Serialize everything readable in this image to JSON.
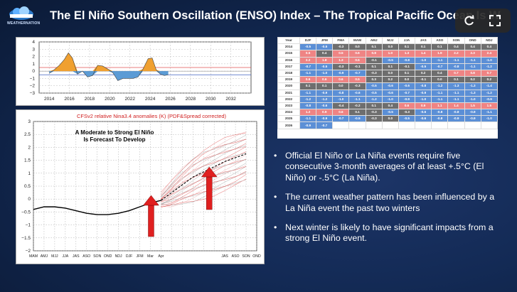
{
  "brand": {
    "logo_text": "WEATHERNATION"
  },
  "title": "The El Niño Southern Oscillation (ENSO) Index – The Tropical Pacific Ocean Is W",
  "controls": {
    "refresh_icon": "refresh-icon",
    "expand_icon": "expand-icon"
  },
  "colors": {
    "warm": "#f0a030",
    "cool": "#5b9bd5",
    "hot_cell": "#ef8484",
    "cold_cell": "#5b8fd6",
    "arrow": "#e02020"
  },
  "chart_data": [
    {
      "type": "area",
      "title": "",
      "x_tick_labels": [
        "2014",
        "2016",
        "2018",
        "2020",
        "2022",
        "2024",
        "2026",
        "2028",
        "2030",
        "2032"
      ],
      "y_tick_labels": [
        "4",
        "3",
        "2",
        "1",
        "0",
        "−1",
        "−2",
        "−3"
      ],
      "ylim": [
        -3,
        4
      ],
      "xlim": [
        2013,
        2034
      ],
      "reference_lines": [
        0.5,
        -0.5
      ],
      "series": [
        {
          "x": [
            2014,
            2014.5,
            2015,
            2015.5,
            2015.9,
            2016.3,
            2016.8,
            2017.3,
            2017.8,
            2018.3,
            2018.8,
            2019.3,
            2019.8,
            2020.3,
            2020.8,
            2021.3,
            2021.8,
            2022.3,
            2022.8,
            2023.3,
            2023.8,
            2024.2,
            2024.6,
            2025,
            2025.4,
            2025.8
          ],
          "values": [
            -0.3,
            0.2,
            0.8,
            1.6,
            2.5,
            1.8,
            -0.4,
            0.0,
            -0.8,
            -0.6,
            0.8,
            0.7,
            0.3,
            -0.2,
            -1.3,
            -1.0,
            -1.0,
            -1.0,
            -0.8,
            0.3,
            1.7,
            1.8,
            0.2,
            -0.4,
            -0.6,
            -0.5
          ]
        }
      ]
    },
    {
      "type": "line",
      "title": "CFSv2 relative Nina3.4 anomalies (K) (PDF&Spread corrected)",
      "annotation": "A Moderate to Strong El Niño Is Forecast To Develop",
      "annotation_lines": [
        "A Moderate to Strong El Niño",
        "Is Forecast To Develop"
      ],
      "x_tick_labels": [
        "MAM",
        "AMJ",
        "MJJ",
        "JJA",
        "JAS",
        "ASO",
        "SON",
        "OND",
        "NDJ",
        "DJF",
        "JFM",
        "Mar",
        "Apr",
        "",
        "",
        "",
        "",
        "",
        "JAS",
        "ASO",
        "SON",
        "OND"
      ],
      "y_tick_labels": [
        "3",
        "2.5",
        "2",
        "1.5",
        "1",
        "0.5",
        "0",
        "−0.5",
        "−1",
        "−1.5",
        "−2"
      ],
      "ylim": [
        -2,
        3
      ],
      "observed": [
        -0.4,
        -0.3,
        -0.3,
        -0.35,
        -0.45,
        -0.55,
        -0.6,
        -0.6,
        -0.55,
        -0.45,
        -0.3,
        -0.15,
        -0.05
      ],
      "forecast_mean": [
        -0.05,
        0.25,
        0.55,
        0.85,
        1.05,
        1.25,
        1.45,
        1.6,
        1.75
      ],
      "forecast_spread_high": [
        0.2,
        0.7,
        1.2,
        1.6,
        1.9,
        2.1,
        2.3,
        2.45,
        2.6
      ],
      "forecast_spread_low": [
        -0.3,
        -0.3,
        -0.2,
        -0.1,
        0.05,
        0.2,
        0.35,
        0.5,
        0.7
      ]
    },
    {
      "type": "table",
      "headers": [
        "Year",
        "DJF",
        "JFM",
        "FMA",
        "MAM",
        "AMJ",
        "MJJ",
        "JJA",
        "JAS",
        "ASO",
        "SON",
        "OND",
        "NDJ"
      ],
      "rows": [
        [
          "2014",
          "-0.5",
          "-0.5",
          "-0.3",
          "0.0",
          "0.1",
          "0.0",
          "0.1",
          "0.1",
          "0.1",
          "0.4",
          "0.4",
          "0.4"
        ],
        [
          "2015",
          "0.5",
          "0.4",
          "0.5",
          "0.6",
          "0.8",
          "1.0",
          "1.3",
          "1.4",
          "1.9",
          "2.2",
          "2.3",
          "2.4"
        ],
        [
          "2016",
          "2.2",
          "1.8",
          "1.3",
          "0.5",
          "-0.1",
          "-0.5",
          "-0.8",
          "-1.0",
          "-1.1",
          "-1.1",
          "-1.1",
          "-1.0"
        ],
        [
          "2017",
          "-0.7",
          "-0.5",
          "-0.3",
          "-0.1",
          "0.1",
          "0.1",
          "-0.1",
          "-0.5",
          "-0.7",
          "-0.8",
          "-1.1",
          "-1.2"
        ],
        [
          "2018",
          "-1.1",
          "-1.0",
          "-0.9",
          "-0.7",
          "-0.3",
          "0.0",
          "0.1",
          "0.2",
          "0.4",
          "0.7",
          "0.8",
          "0.7"
        ],
        [
          "2019",
          "0.6",
          "0.6",
          "0.6",
          "0.5",
          "0.3",
          "0.2",
          "0.0",
          "-0.1",
          "0.0",
          "0.1",
          "0.2",
          "0.2"
        ],
        [
          "2020",
          "0.1",
          "0.1",
          "0.0",
          "-0.3",
          "-0.5",
          "-0.6",
          "-0.6",
          "-0.8",
          "-1.2",
          "-1.3",
          "-1.3",
          "-1.4"
        ],
        [
          "2021",
          "-1.1",
          "-0.9",
          "-0.8",
          "-0.6",
          "-0.5",
          "-0.6",
          "-0.7",
          "-0.9",
          "-1.1",
          "-1.1",
          "-1.3",
          "-1.2"
        ],
        [
          "2022",
          "-1.2",
          "-1.2",
          "-1.0",
          "-1.1",
          "-1.2",
          "-1.0",
          "-0.9",
          "-1.0",
          "-1.1",
          "-1.1",
          "-1.0",
          "-0.9"
        ],
        [
          "2023",
          "-0.8",
          "-0.6",
          "-0.4",
          "-0.2",
          "0.1",
          "0.4",
          "0.6",
          "0.9",
          "1.1",
          "1.4",
          "1.5",
          "1.5"
        ],
        [
          "2024",
          "1.2",
          "0.9",
          "0.6",
          "0.1",
          "-0.3",
          "-0.5",
          "-0.3",
          "-0.6",
          "-0.8",
          "-0.8",
          "-0.9",
          "-1.1"
        ],
        [
          "2025",
          "-1.1",
          "-0.9",
          "-0.7",
          "-0.5",
          "-0.3",
          "0.0",
          "-0.5",
          "-0.6",
          "-0.8",
          "-0.9",
          "-0.9",
          "-1.0"
        ],
        [
          "2026",
          "-0.9",
          "-0.7",
          "",
          "",
          "",
          "",
          "",
          "",
          "",
          "",
          "",
          ""
        ]
      ]
    }
  ],
  "bullets": [
    "Official El Niño or La Niña events require five consecutive 3-month averages of at least +.5°C (El Niño) or -.5°C (La Niña).",
    "The current weather pattern has been influenced by a La Niña event the past two winters",
    "Next winter is likely to have significant impacts from a strong El Niño event."
  ]
}
